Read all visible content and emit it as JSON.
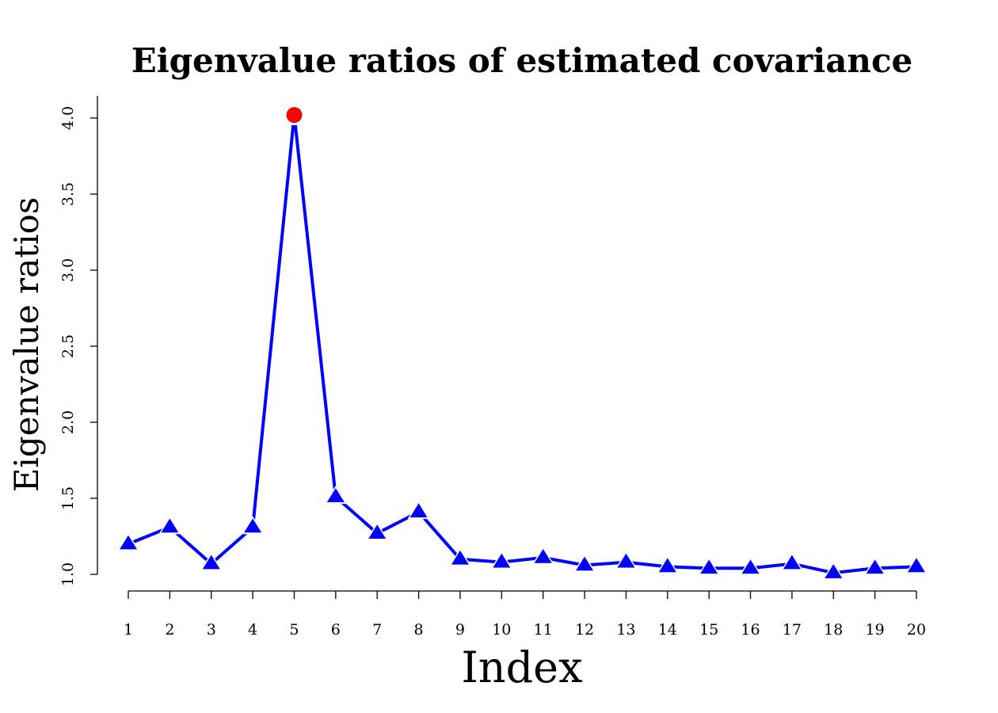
{
  "chart_data": {
    "type": "line",
    "title": "Eigenvalue ratios of estimated covariance",
    "xlabel": "Index",
    "ylabel": "Eigenvalue ratios",
    "x": [
      1,
      2,
      3,
      4,
      5,
      6,
      7,
      8,
      9,
      10,
      11,
      12,
      13,
      14,
      15,
      16,
      17,
      18,
      19,
      20
    ],
    "x_ticks": [
      "1",
      "2",
      "3",
      "4",
      "5",
      "6",
      "7",
      "8",
      "9",
      "10",
      "11",
      "12",
      "13",
      "14",
      "15",
      "16",
      "17",
      "18",
      "19",
      "20"
    ],
    "y_ticks": [
      "1.0",
      "1.5",
      "2.0",
      "2.5",
      "3.0",
      "3.5",
      "4.0"
    ],
    "ylim": [
      1.0,
      4.0
    ],
    "grid": false,
    "series": [
      {
        "values": [
          1.2,
          1.31,
          1.07,
          1.31,
          4.02,
          1.51,
          1.27,
          1.41,
          1.1,
          1.08,
          1.11,
          1.06,
          1.08,
          1.05,
          1.04,
          1.04,
          1.07,
          1.01,
          1.04,
          1.05
        ],
        "color": "#0000ff",
        "marker": "triangle",
        "highlight": {
          "index": 5,
          "color": "#ff0000",
          "marker": "circle"
        }
      }
    ]
  }
}
